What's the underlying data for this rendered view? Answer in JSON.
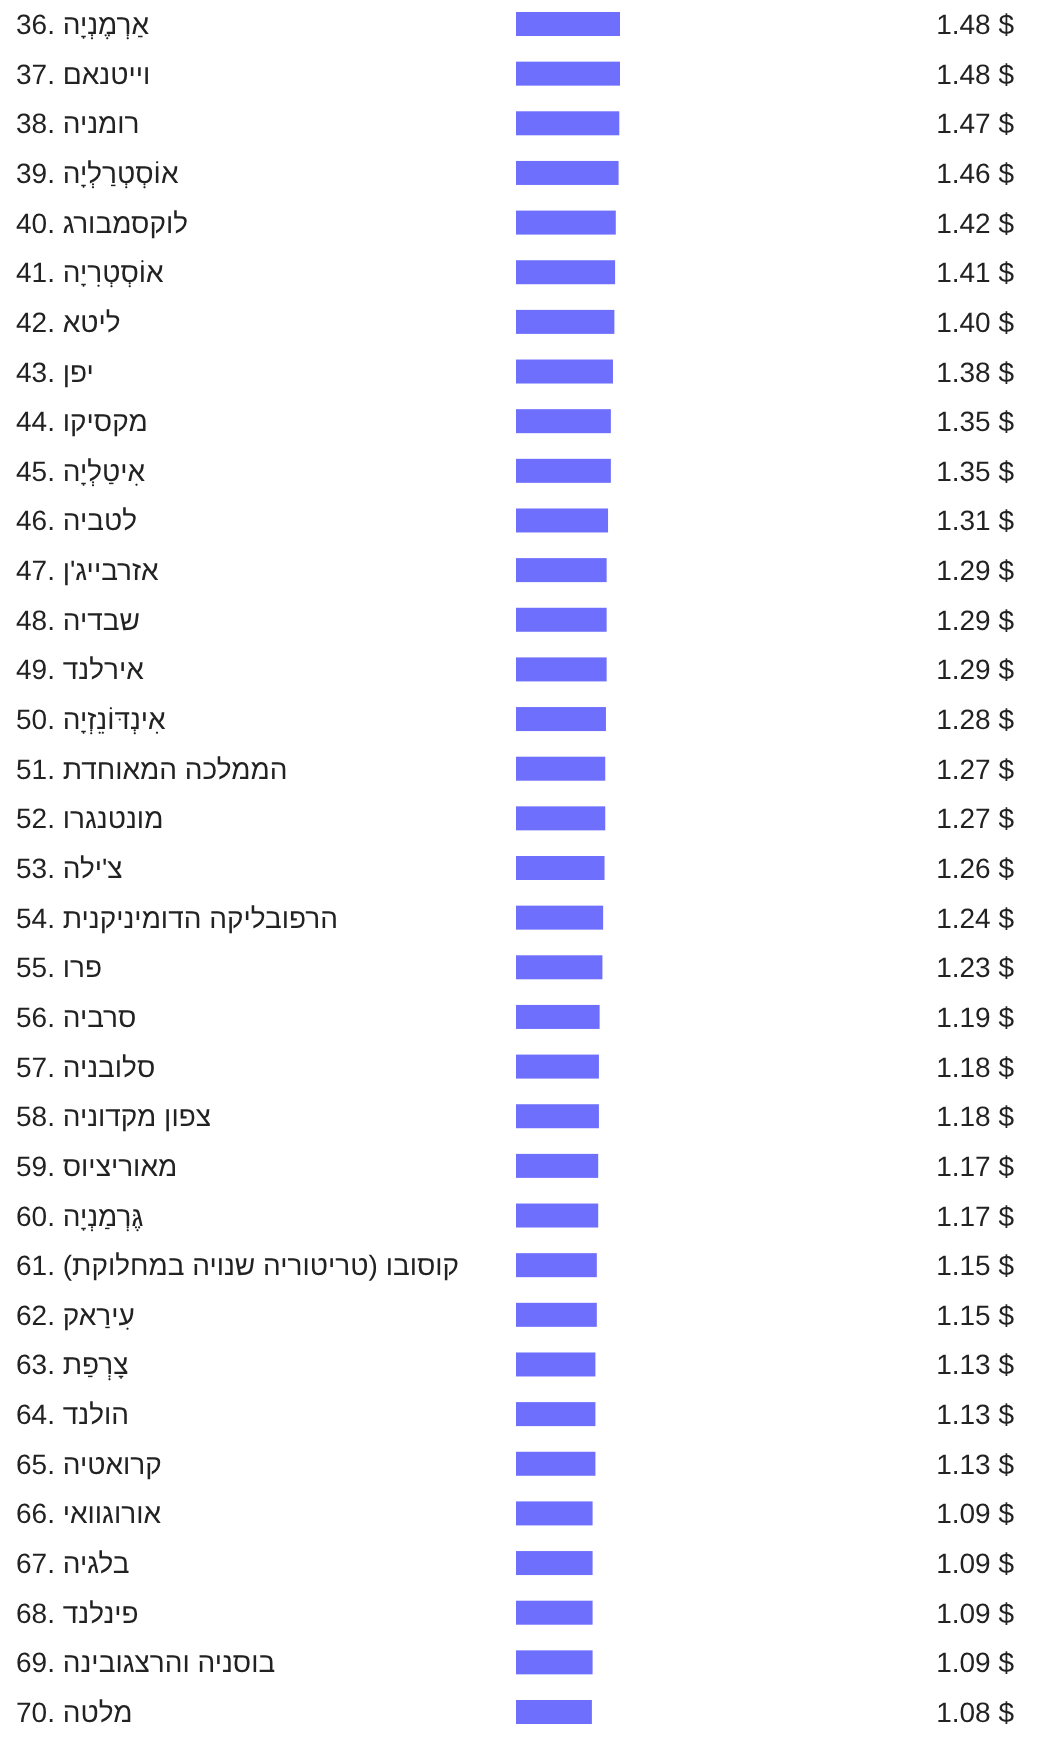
{
  "chart_data": {
    "type": "bar",
    "orientation": "horizontal",
    "color": "#6f6ffd",
    "categories": [
      "36. אַרְמֶנְיָה",
      "37. וייטנאם",
      "38. רומניה",
      "39. אוֹסְטְרַלְיָה",
      "40. לוקסמבורג",
      "41. אוֹסְטְרִיָה",
      "42. ליטא",
      "43. יפן",
      "44. מקסיקו",
      "45. אִיטַלְיָה",
      "46. לטביה",
      "47. אזרבייג'ן",
      "48. שבדיה",
      "49. אירלנד",
      "50. אִינְדּוֹנֵזְיָה",
      "51. הממלכה המאוחדת",
      "52. מונטנגרו",
      "53. צ'ילה",
      "54. הרפובליקה הדומיניקנית",
      "55. פרו",
      "56. סרביה",
      "57. סלובניה",
      "58. צפון מקדוניה",
      "59. מאוריציוס",
      "60. גֶּרְמַנְיָה",
      "61. קוסובו (טריטוריה שנויה במחלוקת)",
      "62. עִירַאק",
      "63. צָרְפַת",
      "64. הולנד",
      "65. קרואטיה",
      "66. אורוגוואי",
      "67. בלגיה",
      "68. פינלנד",
      "69. בוסניה והרצגובינה",
      "70. מלטה"
    ],
    "values": [
      1.48,
      1.48,
      1.47,
      1.46,
      1.42,
      1.41,
      1.4,
      1.38,
      1.35,
      1.35,
      1.31,
      1.29,
      1.29,
      1.29,
      1.28,
      1.27,
      1.27,
      1.26,
      1.24,
      1.23,
      1.19,
      1.18,
      1.18,
      1.17,
      1.17,
      1.15,
      1.15,
      1.13,
      1.13,
      1.13,
      1.09,
      1.09,
      1.09,
      1.09,
      1.08
    ],
    "value_labels": [
      "1.48 $",
      "1.48 $",
      "1.47 $",
      "1.46 $",
      "1.42 $",
      "1.41 $",
      "1.40 $",
      "1.38 $",
      "1.35 $",
      "1.35 $",
      "1.31 $",
      "1.29 $",
      "1.29 $",
      "1.29 $",
      "1.28 $",
      "1.27 $",
      "1.27 $",
      "1.26 $",
      "1.24 $",
      "1.23 $",
      "1.19 $",
      "1.18 $",
      "1.18 $",
      "1.17 $",
      "1.17 $",
      "1.15 $",
      "1.15 $",
      "1.13 $",
      "1.13 $",
      "1.13 $",
      "1.09 $",
      "1.09 $",
      "1.09 $",
      "1.09 $",
      "1.08 $"
    ]
  }
}
